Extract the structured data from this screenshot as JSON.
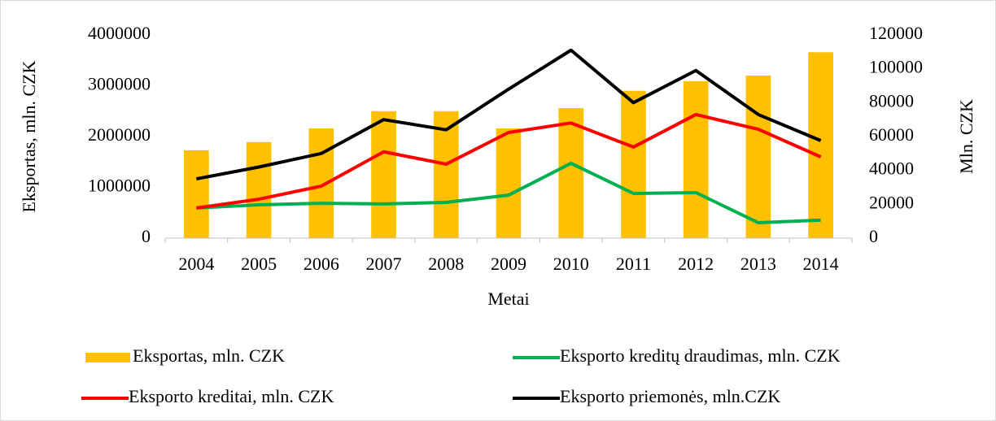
{
  "chart_data": {
    "type": "bar",
    "x_label": "Metai",
    "y_label": "Eksportas, mln. CZK",
    "y2_label": "Mln. CZK",
    "categories": [
      "2004",
      "2005",
      "2006",
      "2007",
      "2008",
      "2009",
      "2010",
      "2011",
      "2012",
      "2013",
      "2014"
    ],
    "series": [
      {
        "name": "Eksportas, mln. CZK",
        "type": "bar",
        "color": "#ffc000",
        "values": [
          1730000,
          1890000,
          2160000,
          2500000,
          2500000,
          2160000,
          2560000,
          2900000,
          3090000,
          3200000,
          3660000
        ]
      },
      {
        "name": "Eksporto kreditų draudimas, mln. CZK",
        "type": "line",
        "axis": "y2",
        "color": "#00b050",
        "values": [
          17800,
          19700,
          20600,
          20200,
          21100,
          25400,
          44200,
          26400,
          26900,
          9100,
          10600
        ]
      },
      {
        "name": "Eksporto kreditai, mln. CZK",
        "type": "line",
        "axis": "y2",
        "color": "#ff0000",
        "values": [
          17800,
          23000,
          30700,
          51000,
          43700,
          62400,
          68000,
          53800,
          73000,
          64300,
          48000
        ]
      },
      {
        "name": "Eksporto priemonės, mln.CZK",
        "type": "line",
        "axis": "y2",
        "color": "#000000",
        "values": [
          35000,
          42000,
          50000,
          70000,
          64000,
          88000,
          111000,
          80000,
          99000,
          73000,
          57600
        ]
      }
    ],
    "ylim": [
      0,
      4000000
    ],
    "yticks": [
      0,
      1000000,
      2000000,
      3000000,
      4000000
    ],
    "y2lim": [
      0,
      120000
    ],
    "y2ticks": [
      0,
      20000,
      40000,
      60000,
      80000,
      100000,
      120000
    ],
    "grid": false,
    "legend": "bottom"
  }
}
